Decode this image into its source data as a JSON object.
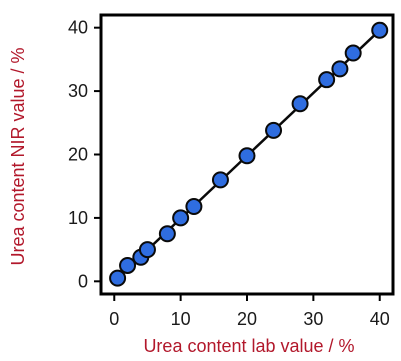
{
  "chart_data": {
    "type": "scatter",
    "title": "",
    "xlabel": "Urea content lab value / %",
    "ylabel": "Urea content NIR value / %",
    "xlim": [
      -2,
      42
    ],
    "ylim": [
      -2,
      42
    ],
    "xticks": [
      0,
      10,
      20,
      30,
      40
    ],
    "yticks": [
      0,
      10,
      20,
      30,
      40
    ],
    "grid": false,
    "colors": {
      "marker_fill": "#2f6de0",
      "marker_stroke": "#0a0a0a",
      "fit_line": "#0a0a0a",
      "axis_title": "#b2182b",
      "axis": "#000000"
    },
    "points": [
      {
        "x": 0.5,
        "y": 0.5
      },
      {
        "x": 2,
        "y": 2.5
      },
      {
        "x": 4,
        "y": 3.8
      },
      {
        "x": 5,
        "y": 5
      },
      {
        "x": 8,
        "y": 7.5
      },
      {
        "x": 10,
        "y": 10
      },
      {
        "x": 12,
        "y": 11.8
      },
      {
        "x": 16,
        "y": 16
      },
      {
        "x": 20,
        "y": 19.8
      },
      {
        "x": 24,
        "y": 23.8
      },
      {
        "x": 28,
        "y": 28
      },
      {
        "x": 32,
        "y": 31.8
      },
      {
        "x": 34,
        "y": 33.5
      },
      {
        "x": 36,
        "y": 36
      },
      {
        "x": 40,
        "y": 39.6
      }
    ],
    "fit_line": {
      "x": [
        0.5,
        40
      ],
      "y": [
        0.5,
        39.6
      ]
    }
  }
}
